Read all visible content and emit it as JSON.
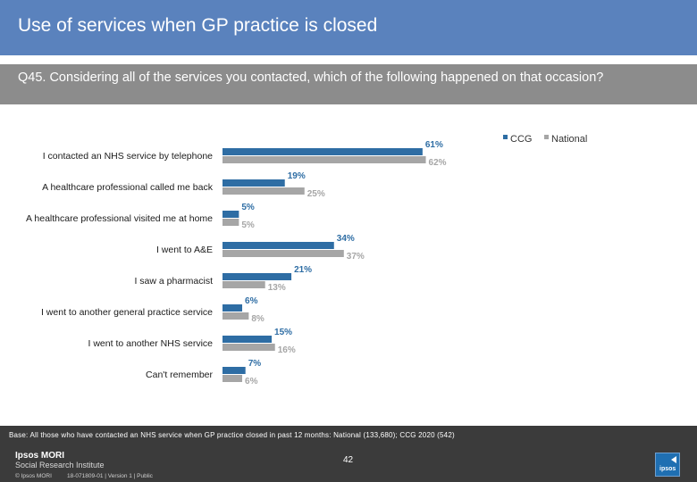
{
  "header": {
    "title": "Use of services when GP practice is closed",
    "question": "Q45. Considering all of the services you contacted, which of the following happened on that occasion?"
  },
  "chart_data": {
    "type": "bar",
    "orientation": "horizontal",
    "title": "",
    "categories": [
      "I contacted an NHS service by telephone",
      "A healthcare professional called me back",
      "A healthcare professional visited me at home",
      "I went to A&E",
      "I saw a pharmacist",
      "I went to another general practice service",
      "I  went to another NHS service",
      "Can't remember"
    ],
    "series": [
      {
        "name": "CCG",
        "color": "#2e6da4",
        "values": [
          61,
          19,
          5,
          34,
          21,
          6,
          15,
          7
        ],
        "labels": [
          "61%",
          "19%",
          "5%",
          "34%",
          "21%",
          "6%",
          "15%",
          "7%"
        ]
      },
      {
        "name": "National",
        "color": "#a6a6a6",
        "values": [
          62,
          25,
          5,
          37,
          13,
          8,
          16,
          6
        ],
        "labels": [
          "62%",
          "25%",
          "5%",
          "37%",
          "13%",
          "8%",
          "16%",
          "6%"
        ]
      }
    ],
    "legend": "top-right",
    "xlim": [
      0,
      100
    ],
    "grid": false
  },
  "footer": {
    "base_note": "Base: All those who have contacted an NHS service when GP practice closed in past 12 months: National (133,680); CCG 2020 (542)",
    "logo_line1": "Ipsos MORI",
    "logo_line2": "Social Research Institute",
    "page_number": "42",
    "copyright": "© Ipsos MORI",
    "doc_ref": "18-071809-01 | Version 1 | Public",
    "badge_text": "ipsos"
  }
}
